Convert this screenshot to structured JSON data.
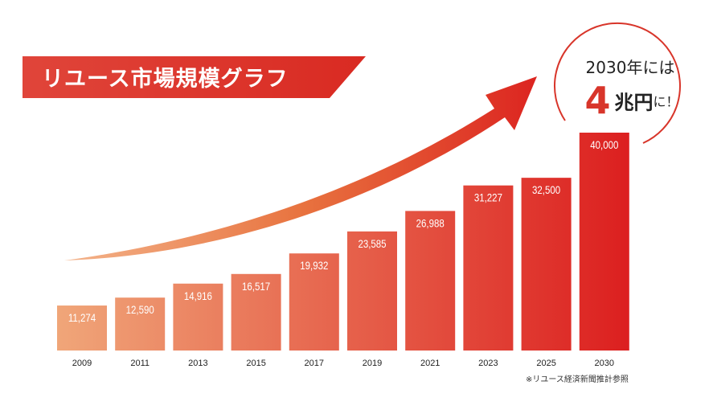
{
  "chart_data": {
    "type": "bar",
    "title": "リユース市場規模グラフ",
    "categories": [
      "2009",
      "2011",
      "2013",
      "2015",
      "2017",
      "2019",
      "2021",
      "2023",
      "2025",
      "2030"
    ],
    "values": [
      11274,
      12590,
      14916,
      16517,
      19932,
      23585,
      26988,
      31227,
      32500,
      40000
    ],
    "value_labels": [
      "11,274",
      "12,590",
      "14,916",
      "16,517",
      "19,932",
      "23,585",
      "26,988",
      "31,227",
      "32,500",
      "40,000"
    ],
    "xlabel": "",
    "ylabel": "",
    "ylim": [
      3800,
      40000
    ],
    "grid": false,
    "annotation": {
      "line1": "2030年には",
      "big": "4",
      "unit": "兆円",
      "tail": "に！"
    },
    "note": "※リユース経済新聞推計参照",
    "colors": {
      "start": "#f0a679",
      "end": "#dc1f1f",
      "accent": "#d8352a"
    }
  }
}
